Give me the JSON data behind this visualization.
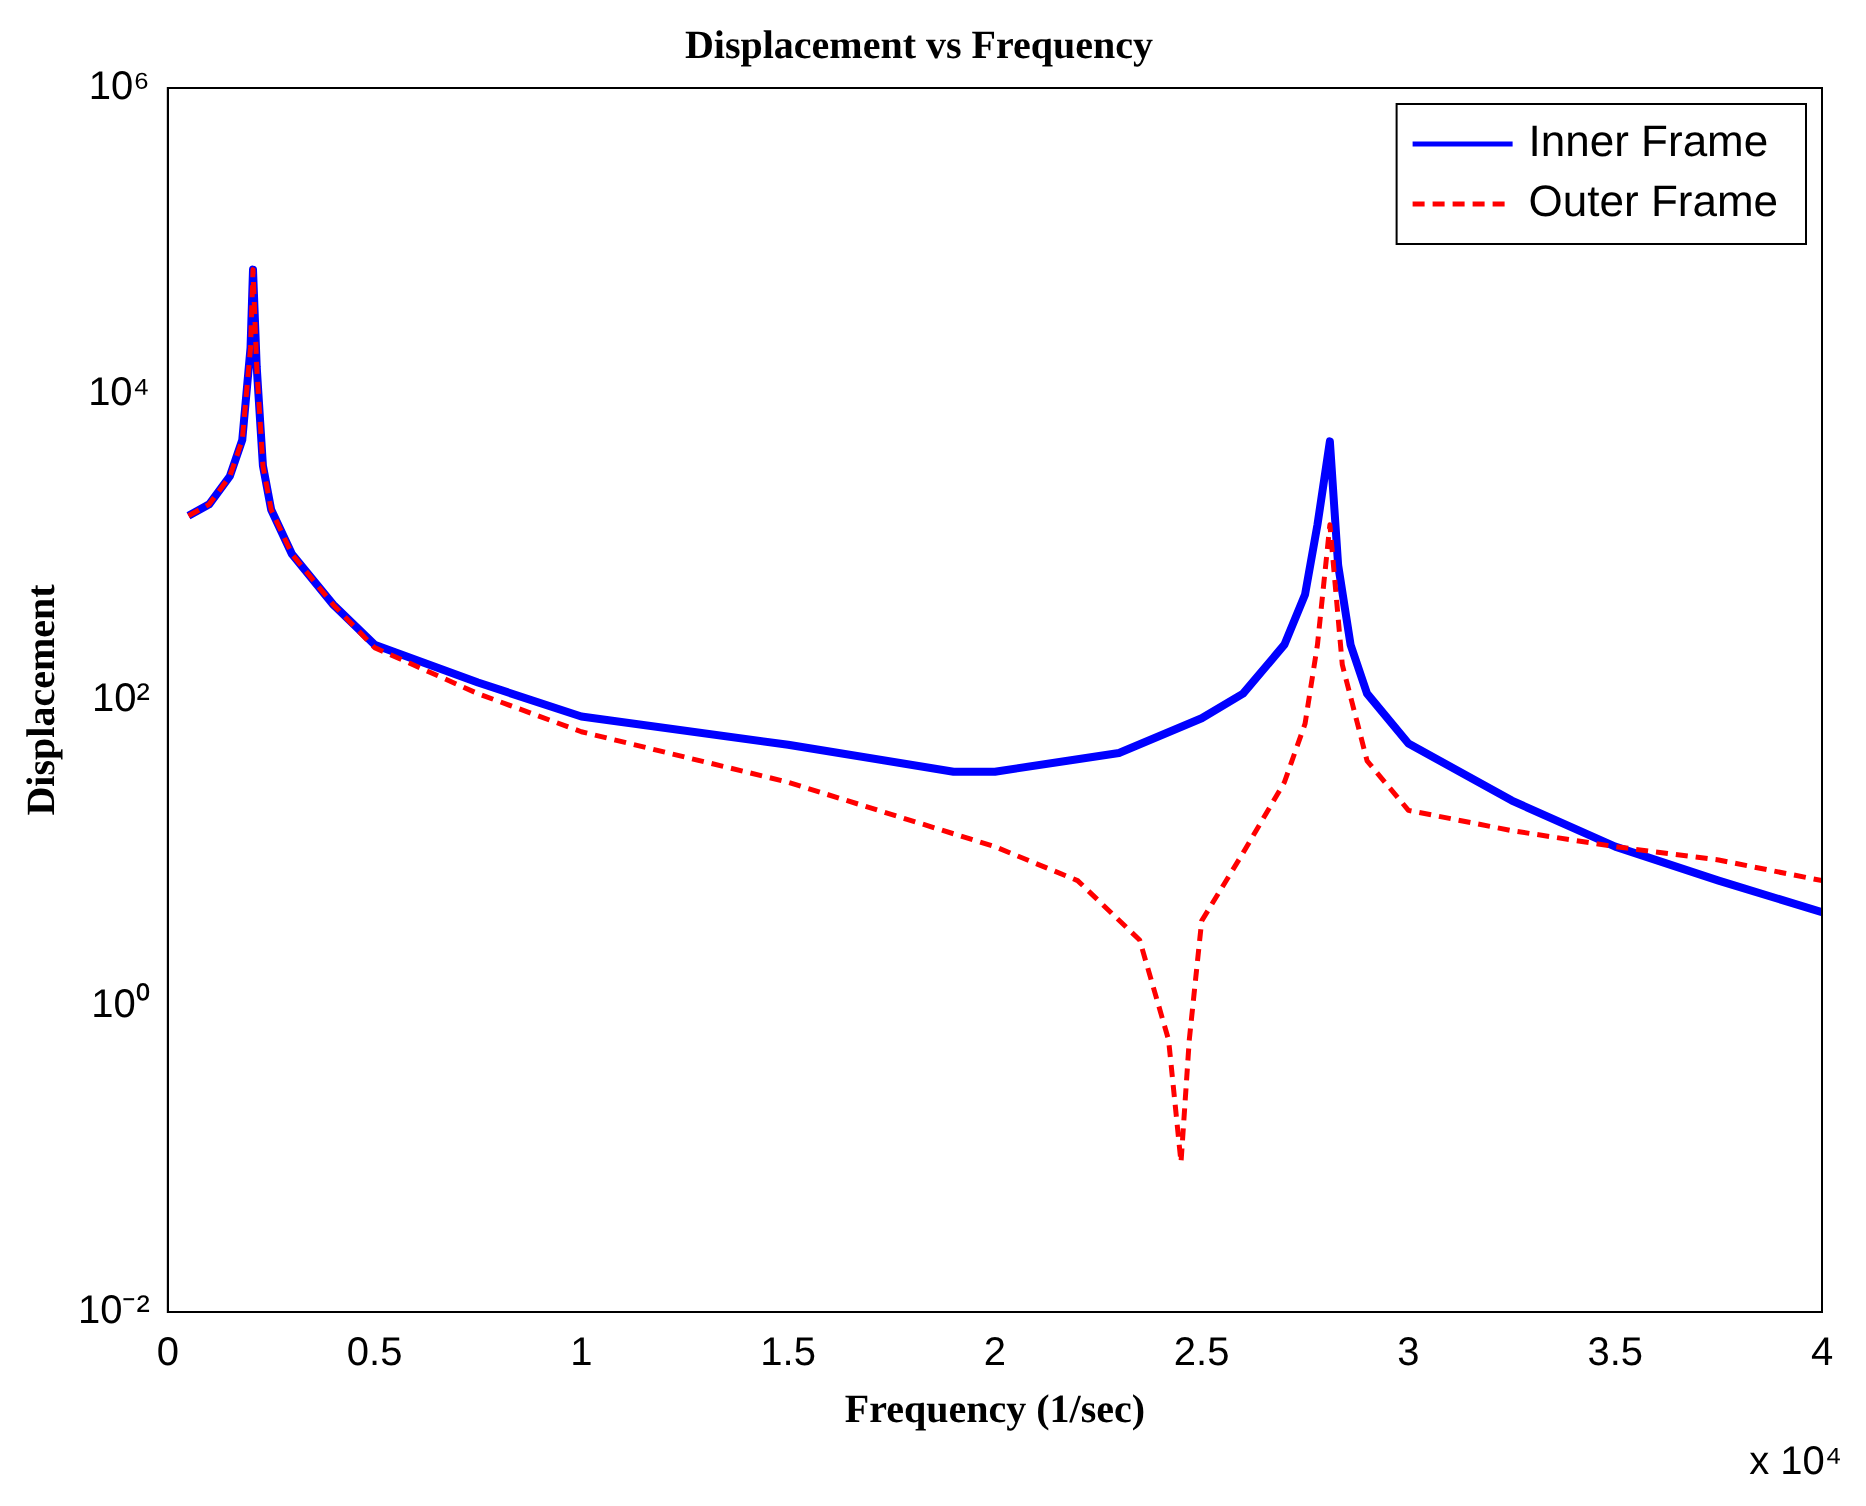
{
  "chart_data": {
    "type": "line",
    "title": "Displacement vs Frequency",
    "xlabel": "Frequency (1/sec)",
    "ylabel": "Displacement",
    "log": "y",
    "xlim": [
      0,
      4
    ],
    "xticks": [
      0,
      0.5,
      1,
      1.5,
      2,
      2.5,
      3,
      3.5,
      4
    ],
    "ylim": [
      0.01,
      1000000
    ],
    "yticks": [
      {
        "value": 0.01,
        "label": "10⁻²"
      },
      {
        "value": 1,
        "label": "10⁰"
      },
      {
        "value": 100,
        "label": "10²"
      },
      {
        "value": 10000,
        "label": "10⁴"
      },
      {
        "value": 1000000,
        "label": "10⁶"
      }
    ],
    "grid": false,
    "legend": "top right",
    "marker": "none",
    "annotations": [
      "x 10⁴"
    ],
    "series": [
      {
        "name": "Inner Frame",
        "color": "#0000ff",
        "line_style": "solid",
        "x": [
          0.05,
          0.1,
          0.15,
          0.18,
          0.2,
          0.206,
          0.215,
          0.23,
          0.25,
          0.3,
          0.4,
          0.5,
          0.75,
          1,
          1.5,
          1.9,
          2,
          2.3,
          2.5,
          2.6,
          2.7,
          2.75,
          2.78,
          2.81,
          2.83,
          2.86,
          2.9,
          3,
          3.25,
          3.5,
          3.75,
          4
        ],
        "values": [
          1600,
          1900,
          2900,
          5000,
          20000,
          65000,
          15000,
          3400,
          1750,
          900,
          420,
          230,
          130,
          78,
          51,
          34,
          34,
          45,
          76,
          110,
          230,
          490,
          1400,
          4900,
          760,
          230,
          110,
          52,
          22,
          11,
          6.6,
          4.1
        ]
      },
      {
        "name": "Outer Frame",
        "color": "#ff0000",
        "line_style": "dashed",
        "x": [
          0.05,
          0.1,
          0.15,
          0.18,
          0.2,
          0.206,
          0.215,
          0.23,
          0.25,
          0.3,
          0.4,
          0.5,
          0.75,
          1,
          1.5,
          2,
          2.2,
          2.35,
          2.42,
          2.45,
          2.47,
          2.5,
          2.6,
          2.7,
          2.75,
          2.78,
          2.81,
          2.84,
          2.9,
          3,
          3.25,
          3.5,
          3.75,
          4
        ],
        "values": [
          1600,
          1900,
          2900,
          5000,
          20000,
          65000,
          15000,
          3400,
          1750,
          900,
          420,
          220,
          110,
          62,
          29,
          11,
          6.6,
          2.7,
          0.6,
          0.095,
          0.6,
          3.6,
          10,
          29,
          70,
          230,
          1400,
          170,
          40,
          19,
          14,
          11,
          9,
          6.6
        ]
      }
    ]
  }
}
